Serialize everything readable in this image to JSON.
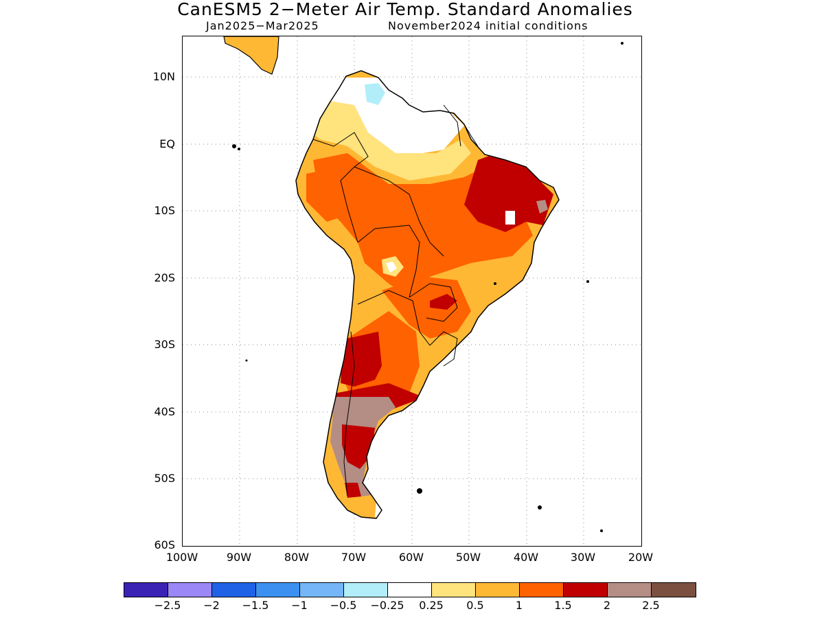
{
  "title": "CanESM5 2−Meter Air Temp. Standard Anomalies",
  "subtitle_left": "Jan2025−Mar2025",
  "subtitle_right": "November2024 initial conditions",
  "axes": {
    "lat_ticks": [
      "10N",
      "EQ",
      "10S",
      "20S",
      "30S",
      "40S",
      "50S",
      "60S"
    ],
    "lon_ticks": [
      "100W",
      "90W",
      "80W",
      "70W",
      "60W",
      "50W",
      "40W",
      "30W",
      "20W"
    ]
  },
  "colorbar": {
    "colors": [
      "#3a22b4",
      "#9b87f5",
      "#1f62e6",
      "#3c91f0",
      "#74b6f7",
      "#b2edfa",
      "#ffffff",
      "#ffe37d",
      "#ffb834",
      "#ff6200",
      "#c00000",
      "#b48d85",
      "#7b5040"
    ],
    "labels": [
      "−2.5",
      "−2",
      "−1.5",
      "−1",
      "−0.5",
      "−0.25",
      "0.25",
      "0.5",
      "1",
      "1.5",
      "2",
      "2.5"
    ]
  },
  "palette": {
    "ocean": "#ffffff",
    "near_zero": "#ffffff",
    "light_yellow": "#ffe37d",
    "yellow_orange": "#ffb834",
    "orange": "#ff6200",
    "dark_red": "#c00000",
    "mauve": "#b48d85",
    "light_blue": "#b2edfa"
  }
}
